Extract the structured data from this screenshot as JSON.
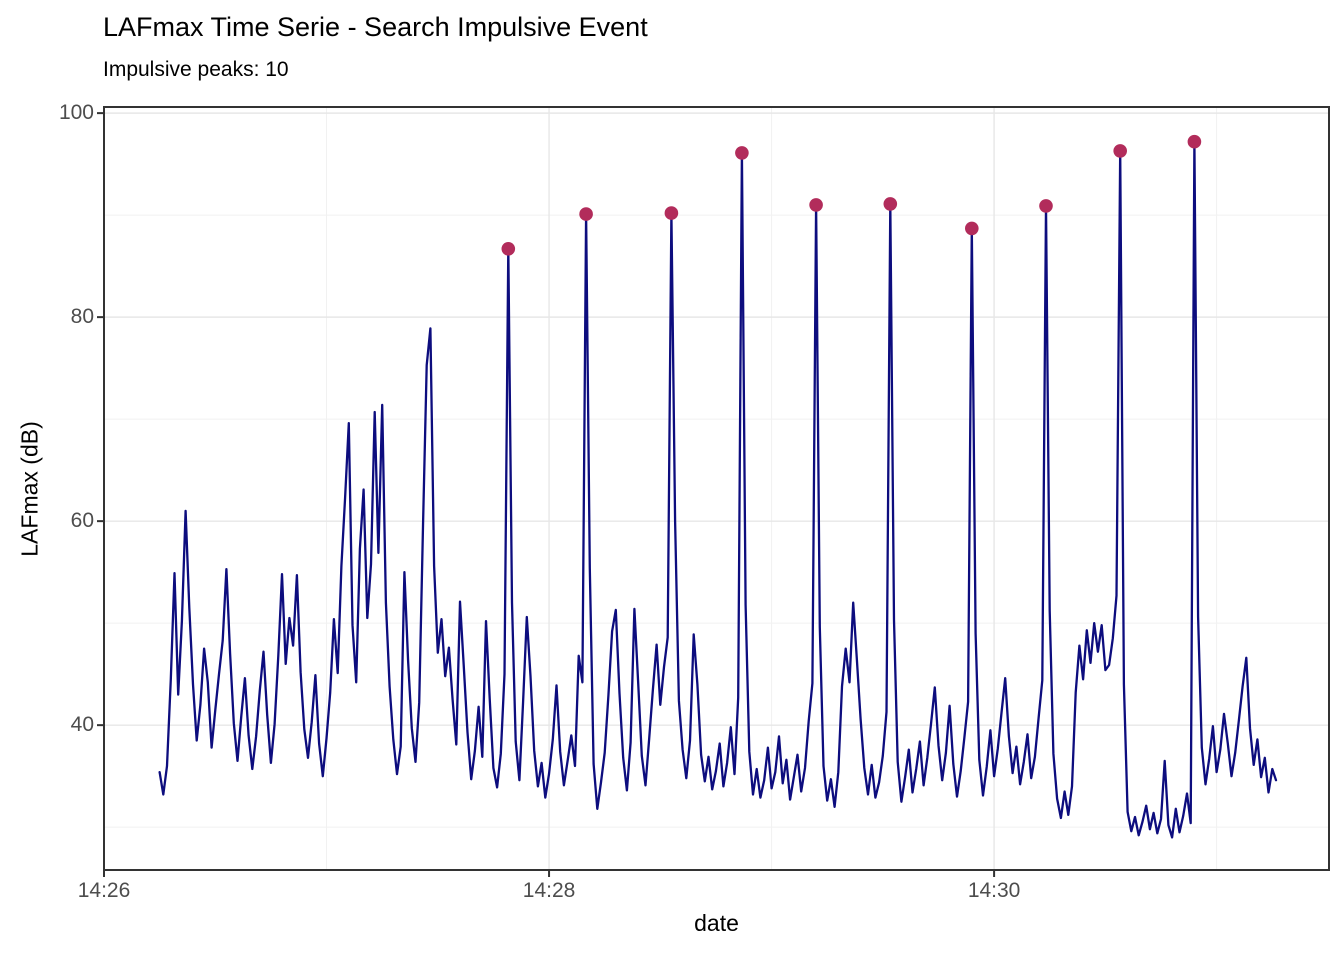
{
  "page": {
    "background": "#FFFFFF"
  },
  "style": {
    "grid_major_color": "#E7E7E7",
    "grid_minor_color": "#F1F1F1",
    "panel_border_color": "#333333",
    "tick_color": "#333333",
    "tick_label_color": "#4D4D4D",
    "title_color": "#000000"
  },
  "chart_data": {
    "type": "line",
    "title": "LAFmax Time Serie - Search Impulsive Event",
    "subtitle": "Impulsive peaks: 10",
    "xlabel": "date",
    "ylabel": "LAFmax (dB)",
    "legend": "none",
    "grid": true,
    "x_axis": {
      "seconds_origin": "14:26:00",
      "tick_labels": [
        "14:26",
        "14:28",
        "14:30"
      ],
      "tick_seconds": [
        0,
        120,
        240
      ],
      "minor_gridline_seconds": [
        60,
        180,
        300
      ],
      "range_seconds": [
        0,
        330.3
      ]
    },
    "y_axis": {
      "tick_labels": [
        "100",
        "80",
        "60",
        "40"
      ],
      "tick_values": [
        100,
        80,
        60,
        40
      ],
      "minor_gridline_values": [
        90,
        70,
        50,
        30
      ],
      "range": [
        25.8,
        100.6
      ]
    },
    "series": [
      {
        "name": "LAFmax",
        "color": "#0D0D7E",
        "points": [
          [
            15,
            35.4
          ],
          [
            16,
            33.2
          ],
          [
            17,
            36.0
          ],
          [
            18,
            44.5
          ],
          [
            19,
            54.9
          ],
          [
            20,
            43.0
          ],
          [
            21,
            50.2
          ],
          [
            22,
            61.0
          ],
          [
            23,
            51.5
          ],
          [
            24,
            44.0
          ],
          [
            25,
            38.5
          ],
          [
            26,
            42.0
          ],
          [
            27,
            47.5
          ],
          [
            28,
            44.2
          ],
          [
            29,
            37.8
          ],
          [
            30,
            41.5
          ],
          [
            31,
            45.0
          ],
          [
            32,
            48.3
          ],
          [
            33,
            55.3
          ],
          [
            34,
            47.0
          ],
          [
            35,
            40.2
          ],
          [
            36,
            36.5
          ],
          [
            37,
            40.8
          ],
          [
            38,
            44.6
          ],
          [
            39,
            39.0
          ],
          [
            40,
            35.7
          ],
          [
            41,
            38.9
          ],
          [
            42,
            43.4
          ],
          [
            43,
            47.2
          ],
          [
            44,
            41.0
          ],
          [
            45,
            36.3
          ],
          [
            46,
            40.1
          ],
          [
            47,
            46.8
          ],
          [
            48,
            54.8
          ],
          [
            49,
            46.0
          ],
          [
            50,
            50.5
          ],
          [
            51,
            47.8
          ],
          [
            52,
            54.7
          ],
          [
            53,
            45.2
          ],
          [
            54,
            39.6
          ],
          [
            55,
            36.8
          ],
          [
            56,
            40.3
          ],
          [
            57,
            44.9
          ],
          [
            58,
            38.2
          ],
          [
            59,
            35.0
          ],
          [
            60,
            38.7
          ],
          [
            61,
            43.2
          ],
          [
            62,
            50.4
          ],
          [
            63,
            45.1
          ],
          [
            64,
            55.6
          ],
          [
            65,
            62.3
          ],
          [
            66,
            69.6
          ],
          [
            67,
            49.8
          ],
          [
            68,
            44.2
          ],
          [
            69,
            57.3
          ],
          [
            70,
            63.1
          ],
          [
            71,
            50.5
          ],
          [
            72,
            55.8
          ],
          [
            73,
            70.7
          ],
          [
            74,
            56.9
          ],
          [
            75,
            71.4
          ],
          [
            76,
            52.0
          ],
          [
            77,
            43.8
          ],
          [
            78,
            38.6
          ],
          [
            79,
            35.2
          ],
          [
            80,
            37.9
          ],
          [
            81,
            55.0
          ],
          [
            82,
            46.3
          ],
          [
            83,
            39.7
          ],
          [
            84,
            36.4
          ],
          [
            85,
            42.2
          ],
          [
            86,
            59.5
          ],
          [
            87,
            75.3
          ],
          [
            88,
            78.9
          ],
          [
            89,
            55.6
          ],
          [
            90,
            47.1
          ],
          [
            91,
            50.4
          ],
          [
            92,
            44.8
          ],
          [
            93,
            47.6
          ],
          [
            94,
            42.5
          ],
          [
            95,
            38.1
          ],
          [
            96,
            52.1
          ],
          [
            97,
            45.9
          ],
          [
            98,
            39.3
          ],
          [
            99,
            34.7
          ],
          [
            100,
            37.5
          ],
          [
            101,
            41.8
          ],
          [
            102,
            36.9
          ],
          [
            103,
            50.2
          ],
          [
            104,
            42.6
          ],
          [
            105,
            35.8
          ],
          [
            106,
            33.9
          ],
          [
            107,
            37.2
          ],
          [
            108,
            45.0
          ],
          [
            109,
            86.7
          ],
          [
            110,
            52.0
          ],
          [
            111,
            38.4
          ],
          [
            112,
            34.6
          ],
          [
            113,
            42.3
          ],
          [
            114,
            50.6
          ],
          [
            115,
            44.8
          ],
          [
            116,
            37.5
          ],
          [
            117,
            34.0
          ],
          [
            118,
            36.3
          ],
          [
            119,
            32.9
          ],
          [
            120,
            35.2
          ],
          [
            121,
            38.6
          ],
          [
            122,
            43.9
          ],
          [
            123,
            37.4
          ],
          [
            124,
            34.1
          ],
          [
            125,
            36.5
          ],
          [
            126,
            39.0
          ],
          [
            127,
            36.0
          ],
          [
            128,
            46.8
          ],
          [
            129,
            44.2
          ],
          [
            130,
            90.1
          ],
          [
            131,
            55.4
          ],
          [
            132,
            36.2
          ],
          [
            133,
            31.8
          ],
          [
            134,
            34.4
          ],
          [
            135,
            37.3
          ],
          [
            136,
            42.9
          ],
          [
            137,
            49.2
          ],
          [
            138,
            51.3
          ],
          [
            139,
            43.1
          ],
          [
            140,
            36.8
          ],
          [
            141,
            33.6
          ],
          [
            142,
            38.3
          ],
          [
            143,
            51.4
          ],
          [
            144,
            44.3
          ],
          [
            145,
            37.0
          ],
          [
            146,
            34.1
          ],
          [
            147,
            38.7
          ],
          [
            148,
            43.5
          ],
          [
            149,
            47.9
          ],
          [
            150,
            42.0
          ],
          [
            151,
            45.7
          ],
          [
            152,
            48.6
          ],
          [
            153,
            90.2
          ],
          [
            154,
            60.0
          ],
          [
            155,
            42.4
          ],
          [
            156,
            37.6
          ],
          [
            157,
            34.8
          ],
          [
            158,
            38.5
          ],
          [
            159,
            48.9
          ],
          [
            160,
            44.0
          ],
          [
            161,
            37.1
          ],
          [
            162,
            34.5
          ],
          [
            163,
            36.9
          ],
          [
            164,
            33.7
          ],
          [
            165,
            35.5
          ],
          [
            166,
            38.2
          ],
          [
            167,
            34.0
          ],
          [
            168,
            36.3
          ],
          [
            169,
            39.8
          ],
          [
            170,
            35.2
          ],
          [
            171,
            42.7
          ],
          [
            172,
            96.1
          ],
          [
            173,
            51.8
          ],
          [
            174,
            37.4
          ],
          [
            175,
            33.2
          ],
          [
            176,
            35.7
          ],
          [
            177,
            32.9
          ],
          [
            178,
            34.6
          ],
          [
            179,
            37.8
          ],
          [
            180,
            33.8
          ],
          [
            181,
            35.4
          ],
          [
            182,
            38.9
          ],
          [
            183,
            34.3
          ],
          [
            184,
            36.6
          ],
          [
            185,
            32.7
          ],
          [
            186,
            34.9
          ],
          [
            187,
            37.1
          ],
          [
            188,
            33.5
          ],
          [
            189,
            35.8
          ],
          [
            190,
            40.4
          ],
          [
            191,
            44.1
          ],
          [
            192,
            91.0
          ],
          [
            193,
            49.6
          ],
          [
            194,
            36.0
          ],
          [
            195,
            32.6
          ],
          [
            196,
            34.7
          ],
          [
            197,
            32.0
          ],
          [
            198,
            35.4
          ],
          [
            199,
            43.8
          ],
          [
            200,
            47.5
          ],
          [
            201,
            44.2
          ],
          [
            202,
            52.0
          ],
          [
            203,
            46.4
          ],
          [
            204,
            40.6
          ],
          [
            205,
            35.8
          ],
          [
            206,
            33.2
          ],
          [
            207,
            36.1
          ],
          [
            208,
            32.9
          ],
          [
            209,
            34.4
          ],
          [
            210,
            37.0
          ],
          [
            211,
            41.3
          ],
          [
            212,
            91.1
          ],
          [
            213,
            50.3
          ],
          [
            214,
            36.4
          ],
          [
            215,
            32.5
          ],
          [
            216,
            34.9
          ],
          [
            217,
            37.6
          ],
          [
            218,
            33.4
          ],
          [
            219,
            35.7
          ],
          [
            220,
            38.4
          ],
          [
            221,
            34.1
          ],
          [
            222,
            36.8
          ],
          [
            223,
            40.2
          ],
          [
            224,
            43.7
          ],
          [
            225,
            38.0
          ],
          [
            226,
            34.6
          ],
          [
            227,
            37.3
          ],
          [
            228,
            41.9
          ],
          [
            229,
            36.2
          ],
          [
            230,
            33.0
          ],
          [
            231,
            35.5
          ],
          [
            232,
            38.8
          ],
          [
            233,
            42.3
          ],
          [
            234,
            88.7
          ],
          [
            235,
            49.0
          ],
          [
            236,
            36.6
          ],
          [
            237,
            33.1
          ],
          [
            238,
            35.9
          ],
          [
            239,
            39.5
          ],
          [
            240,
            35.0
          ],
          [
            241,
            37.7
          ],
          [
            242,
            41.2
          ],
          [
            243,
            44.6
          ],
          [
            244,
            38.9
          ],
          [
            245,
            35.3
          ],
          [
            246,
            37.9
          ],
          [
            247,
            34.2
          ],
          [
            248,
            36.4
          ],
          [
            249,
            39.1
          ],
          [
            250,
            34.8
          ],
          [
            251,
            36.9
          ],
          [
            252,
            40.7
          ],
          [
            253,
            44.4
          ],
          [
            254,
            90.9
          ],
          [
            255,
            51.2
          ],
          [
            256,
            37.2
          ],
          [
            257,
            32.8
          ],
          [
            258,
            30.9
          ],
          [
            259,
            33.5
          ],
          [
            260,
            31.2
          ],
          [
            261,
            34.0
          ],
          [
            262,
            43.2
          ],
          [
            263,
            47.8
          ],
          [
            264,
            44.5
          ],
          [
            265,
            49.3
          ],
          [
            266,
            46.1
          ],
          [
            267,
            50.0
          ],
          [
            268,
            47.2
          ],
          [
            269,
            49.8
          ],
          [
            270,
            45.4
          ],
          [
            271,
            45.9
          ],
          [
            272,
            48.5
          ],
          [
            273,
            52.7
          ],
          [
            274,
            96.3
          ],
          [
            275,
            44.0
          ],
          [
            276,
            31.5
          ],
          [
            277,
            29.6
          ],
          [
            278,
            31.0
          ],
          [
            279,
            29.2
          ],
          [
            280,
            30.5
          ],
          [
            281,
            32.1
          ],
          [
            282,
            29.8
          ],
          [
            283,
            31.4
          ],
          [
            284,
            29.4
          ],
          [
            285,
            30.8
          ],
          [
            286,
            36.5
          ],
          [
            287,
            30.2
          ],
          [
            288,
            29.0
          ],
          [
            289,
            31.8
          ],
          [
            290,
            29.5
          ],
          [
            291,
            31.1
          ],
          [
            292,
            33.3
          ],
          [
            293,
            30.4
          ],
          [
            294,
            97.2
          ],
          [
            295,
            50.6
          ],
          [
            296,
            37.8
          ],
          [
            297,
            34.2
          ],
          [
            298,
            36.7
          ],
          [
            299,
            39.9
          ],
          [
            300,
            35.4
          ],
          [
            301,
            37.6
          ],
          [
            302,
            41.1
          ],
          [
            303,
            38.2
          ],
          [
            304,
            35.0
          ],
          [
            305,
            37.3
          ],
          [
            306,
            40.5
          ],
          [
            307,
            43.8
          ],
          [
            308,
            46.6
          ],
          [
            309,
            39.7
          ],
          [
            310,
            36.1
          ],
          [
            311,
            38.6
          ],
          [
            312,
            34.9
          ],
          [
            313,
            36.8
          ],
          [
            314,
            33.4
          ],
          [
            315,
            35.7
          ],
          [
            316,
            34.6
          ]
        ]
      }
    ],
    "peaks": {
      "name": "Impulsive peaks",
      "count": 10,
      "color": "#B22C5B",
      "points": [
        [
          109,
          86.7
        ],
        [
          130,
          90.1
        ],
        [
          153,
          90.2
        ],
        [
          172,
          96.1
        ],
        [
          192,
          91.0
        ],
        [
          212,
          91.1
        ],
        [
          234,
          88.7
        ],
        [
          254,
          90.9
        ],
        [
          274,
          96.3
        ],
        [
          294,
          97.2
        ]
      ],
      "times": [
        "14:27:49",
        "14:28:10",
        "14:28:33",
        "14:28:52",
        "14:29:12",
        "14:29:32",
        "14:29:54",
        "14:30:14",
        "14:30:34",
        "14:30:54"
      ]
    }
  }
}
